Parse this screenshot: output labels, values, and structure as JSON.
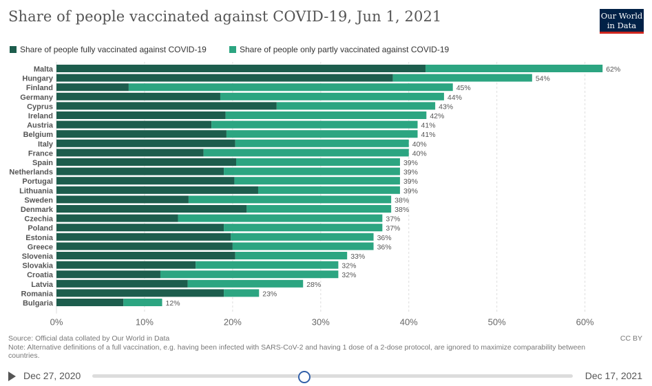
{
  "title": "Share of people vaccinated against COVID-19, Jun 1, 2021",
  "logo": {
    "line1": "Our World",
    "line2": "in Data"
  },
  "colors": {
    "full": "#1d5d4d",
    "partial": "#2ca581",
    "grid": "#dddddd",
    "logo_bg": "#002147",
    "logo_accent": "#ce261e",
    "slider": "#3360a9"
  },
  "footer": {
    "source": "Source: Official data collated by Our World in Data",
    "note": "Note: Alternative definitions of a full vaccination, e.g. having been infected with SARS-CoV-2 and having 1 dose of a 2-dose protocol, are ignored to maximize comparability between countries.",
    "license": "CC BY"
  },
  "timeline": {
    "start": "Dec 27, 2020",
    "end": "Dec 17, 2021",
    "position": 0.44
  },
  "chart_data": {
    "type": "bar",
    "orientation": "horizontal",
    "stacked": true,
    "categories": [
      "Malta",
      "Hungary",
      "Finland",
      "Germany",
      "Cyprus",
      "Ireland",
      "Austria",
      "Belgium",
      "Italy",
      "France",
      "Spain",
      "Netherlands",
      "Portugal",
      "Lithuania",
      "Sweden",
      "Denmark",
      "Czechia",
      "Poland",
      "Estonia",
      "Greece",
      "Slovenia",
      "Slovakia",
      "Croatia",
      "Latvia",
      "Romania",
      "Bulgaria"
    ],
    "series": [
      {
        "name": "Share of people fully vaccinated against COVID-19",
        "values": [
          41.9,
          38.2,
          8.2,
          18.6,
          25.0,
          19.2,
          17.6,
          19.3,
          20.3,
          16.7,
          20.4,
          19.0,
          20.2,
          22.9,
          15.0,
          21.6,
          13.8,
          19.0,
          19.8,
          20.0,
          20.3,
          15.8,
          11.8,
          14.9,
          19.0,
          7.6
        ]
      },
      {
        "name": "Share of people only partly vaccinated against COVID-19",
        "values": [
          20.1,
          15.8,
          36.8,
          25.4,
          18.0,
          22.8,
          23.4,
          21.7,
          19.7,
          23.3,
          18.6,
          20.0,
          18.8,
          16.1,
          23.0,
          16.4,
          23.2,
          18.0,
          16.2,
          16.0,
          12.7,
          16.2,
          20.2,
          13.1,
          4.0,
          4.4
        ]
      }
    ],
    "totals_labels": [
      "62%",
      "54%",
      "45%",
      "44%",
      "43%",
      "42%",
      "41%",
      "41%",
      "40%",
      "40%",
      "39%",
      "39%",
      "39%",
      "39%",
      "38%",
      "38%",
      "37%",
      "37%",
      "36%",
      "36%",
      "33%",
      "32%",
      "32%",
      "28%",
      "23%",
      "12%"
    ],
    "xlim": [
      0,
      63
    ],
    "xticks": [
      0,
      10,
      20,
      30,
      40,
      50,
      60
    ],
    "xtick_labels": [
      "0%",
      "10%",
      "20%",
      "30%",
      "40%",
      "50%",
      "60%"
    ],
    "grid": true,
    "legend_position": "top-left"
  }
}
